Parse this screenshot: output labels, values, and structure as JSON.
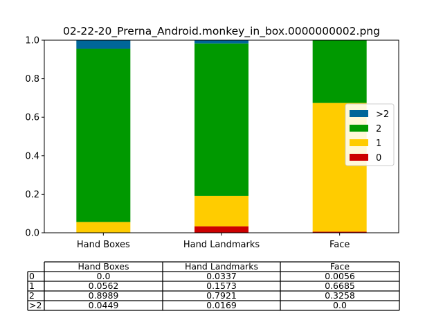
{
  "chart_data": {
    "type": "bar",
    "stacked": true,
    "title": "02-22-20_Prerna_Android.monkey_in_box.0000000002.png",
    "xlabel": "",
    "ylabel": "",
    "ylim": [
      0,
      1.0
    ],
    "yticks": [
      "0.0",
      "0.2",
      "0.4",
      "0.6",
      "0.8",
      "1.0"
    ],
    "categories": [
      "Hand Boxes",
      "Hand Landmarks",
      "Face"
    ],
    "series": [
      {
        "name": "0",
        "color": "#cc0000",
        "values": [
          0.0,
          0.0337,
          0.0056
        ]
      },
      {
        "name": "1",
        "color": "#ffcc00",
        "values": [
          0.0562,
          0.1573,
          0.6685
        ]
      },
      {
        "name": "2",
        "color": "#009900",
        "values": [
          0.8989,
          0.7921,
          0.3258
        ]
      },
      {
        "name": ">2",
        "color": "#006699",
        "values": [
          0.0449,
          0.0169,
          0.0
        ]
      }
    ],
    "legend_order": [
      ">2",
      "2",
      "1",
      "0"
    ],
    "legend_position": "center-right",
    "grid": false
  },
  "table": {
    "columns": [
      "Hand Boxes",
      "Hand Landmarks",
      "Face"
    ],
    "rows": [
      {
        "label": "0",
        "cells": [
          "0.0",
          "0.0337",
          "0.0056"
        ]
      },
      {
        "label": "1",
        "cells": [
          "0.0562",
          "0.1573",
          "0.6685"
        ]
      },
      {
        "label": "2",
        "cells": [
          "0.8989",
          "0.7921",
          "0.3258"
        ]
      },
      {
        "label": ">2",
        "cells": [
          "0.0449",
          "0.0169",
          "0.0"
        ]
      }
    ]
  }
}
